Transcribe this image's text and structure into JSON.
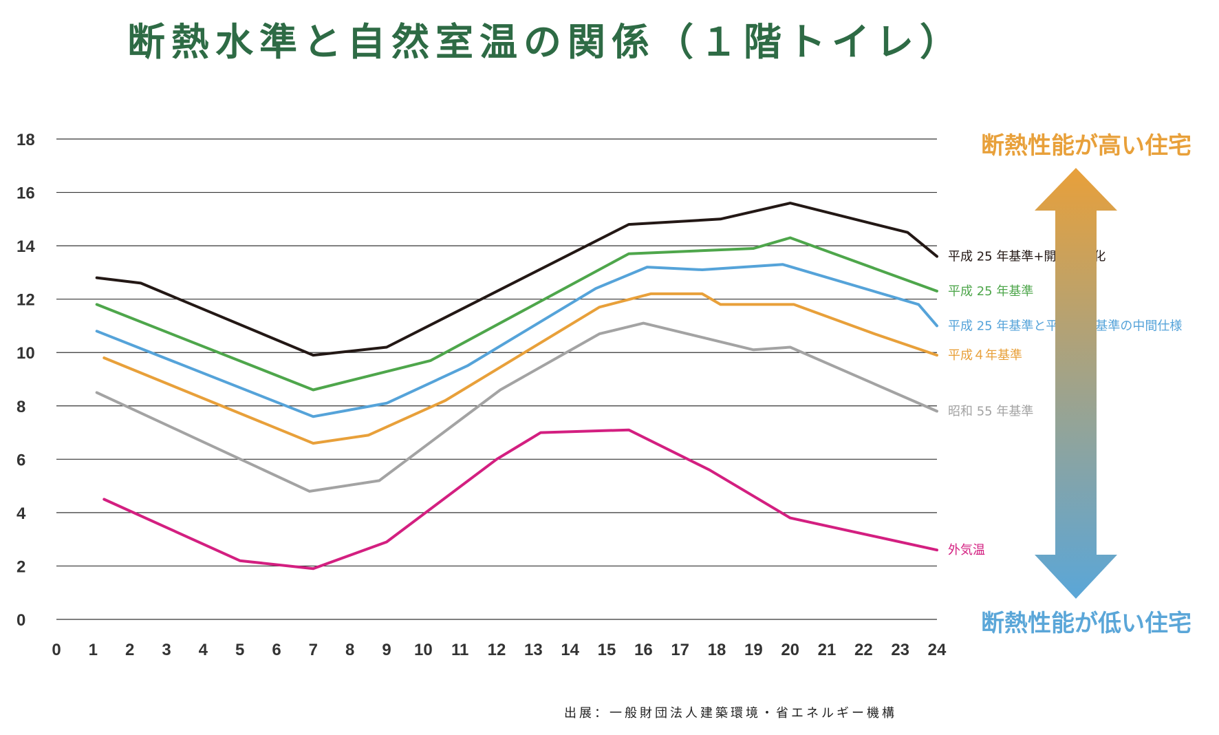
{
  "title": "断熱水準と自然室温の関係（１階トイレ）",
  "indicator": {
    "high_label": "断熱性能が高い住宅",
    "low_label": "断熱性能が低い住宅",
    "high_color": "#e8a03a",
    "low_color": "#5aa6d8"
  },
  "source": "出展：一般財団法人建築環境・省エネルギー機構",
  "chart_data": {
    "type": "line",
    "title": "断熱水準と自然室温の関係（１階トイレ）",
    "xlabel": "",
    "ylabel": "",
    "xlim": [
      0,
      24
    ],
    "ylim": [
      0,
      18
    ],
    "x_ticks": [
      0,
      1,
      2,
      3,
      4,
      5,
      6,
      7,
      8,
      9,
      10,
      11,
      12,
      13,
      14,
      15,
      16,
      17,
      18,
      19,
      20,
      21,
      22,
      23,
      24
    ],
    "y_ticks": [
      0,
      2,
      4,
      6,
      8,
      10,
      12,
      14,
      16,
      18
    ],
    "grid": "horizontal",
    "series": [
      {
        "name": "平成 25 年基準+開口部強化",
        "color": "#231815",
        "x": [
          1.1,
          2.3,
          7,
          9,
          15.6,
          18.1,
          20,
          23.2,
          24
        ],
        "y": [
          12.8,
          12.6,
          9.9,
          10.2,
          14.8,
          15.0,
          15.6,
          14.5,
          13.6
        ]
      },
      {
        "name": "平成 25 年基準",
        "color": "#4ea64b",
        "x": [
          1.1,
          7,
          10.2,
          15.6,
          19,
          20,
          24
        ],
        "y": [
          11.8,
          8.6,
          9.7,
          13.7,
          13.9,
          14.3,
          12.3
        ]
      },
      {
        "name": "平成 25 年基準と平成４年基準の中間仕様",
        "color": "#55a3d9",
        "x": [
          1.1,
          7,
          9,
          11.2,
          14.7,
          16.1,
          17.6,
          19.8,
          23.5,
          24
        ],
        "y": [
          10.8,
          7.6,
          8.1,
          9.5,
          12.4,
          13.2,
          13.1,
          13.3,
          11.8,
          11.0
        ]
      },
      {
        "name": "平成４年基準",
        "color": "#e8a03a",
        "x": [
          1.3,
          7,
          8.5,
          10.6,
          14.8,
          16.2,
          17.6,
          18.1,
          20.1,
          22.3,
          24
        ],
        "y": [
          9.8,
          6.6,
          6.9,
          8.2,
          11.7,
          12.2,
          12.2,
          11.8,
          11.8,
          10.7,
          9.9
        ]
      },
      {
        "name": "昭和 55 年基準",
        "color": "#a3a3a3",
        "x": [
          1.1,
          6.9,
          8.8,
          12.1,
          14.8,
          16,
          19,
          20,
          24
        ],
        "y": [
          8.5,
          4.8,
          5.2,
          8.6,
          10.7,
          11.1,
          10.1,
          10.2,
          7.8
        ]
      },
      {
        "name": "外気温",
        "color": "#d31f80",
        "x": [
          1.3,
          5,
          7,
          9,
          12,
          13.2,
          15.6,
          17.8,
          20,
          24
        ],
        "y": [
          4.5,
          2.2,
          1.9,
          2.9,
          6.0,
          7.0,
          7.1,
          5.6,
          3.8,
          2.6
        ]
      }
    ]
  }
}
